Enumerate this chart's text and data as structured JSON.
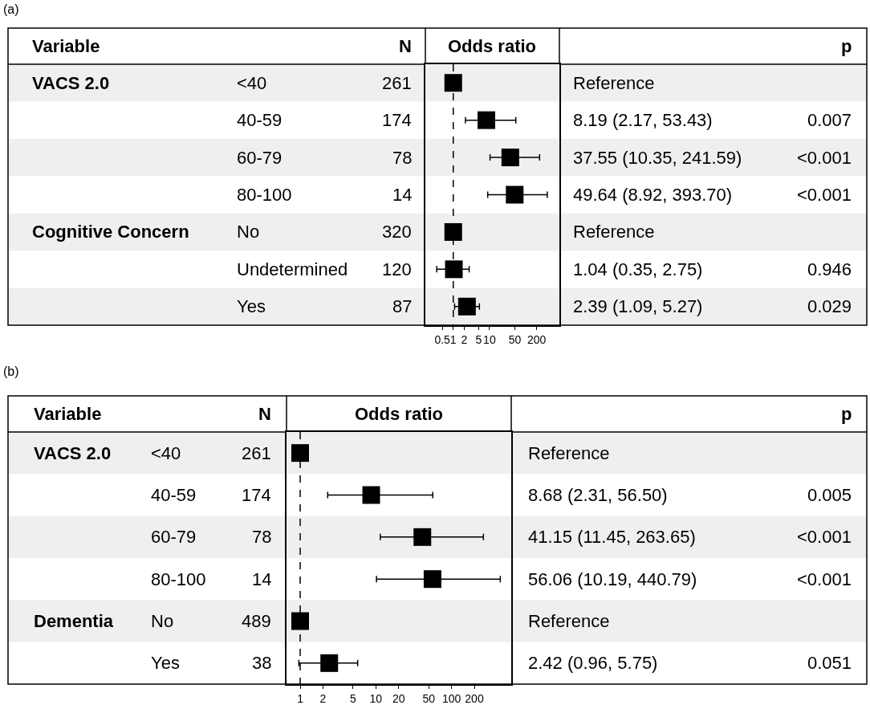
{
  "chart_data": [
    {
      "type": "scatter",
      "orientation": "horizontal",
      "log": "x",
      "marker": "square",
      "grid": false,
      "categories": [
        "<40",
        "40-59",
        "60-79",
        "80-100",
        "No",
        "Undetermined",
        "Yes"
      ],
      "color": "#000000",
      "values": [
        1,
        8.19,
        37.55,
        49.64,
        1,
        1.04,
        2.39
      ],
      "errors": [
        null,
        [
          2.17,
          53.43
        ],
        [
          10.35,
          241.59
        ],
        [
          8.92,
          393.7
        ],
        null,
        [
          0.35,
          2.75
        ],
        [
          1.09,
          5.27
        ]
      ],
      "xlim": [
        0.17,
        850
      ],
      "xticks": [
        0.5,
        1,
        2,
        5,
        10,
        50,
        200
      ],
      "ref_lines": [
        {
          "axis": "x",
          "value": 1,
          "line_style": "dashed",
          "color": "#000000"
        }
      ],
      "annotations": [
        "(a)",
        "Variable",
        "N",
        "Odds ratio",
        "p",
        "VACS 2.0",
        "Cognitive Concern",
        "261",
        "174",
        "78",
        "14",
        "320",
        "120",
        "87",
        "Reference",
        "8.19 (2.17, 53.43)",
        "37.55 (10.35, 241.59)",
        "49.64 (8.92, 393.70)",
        "Reference",
        "1.04 (0.35, 2.75)",
        "2.39 (1.09, 5.27)",
        "0.007",
        "<0.001",
        "<0.001",
        "0.946",
        "0.029"
      ]
    },
    {
      "type": "scatter",
      "orientation": "horizontal",
      "log": "x",
      "marker": "square",
      "grid": false,
      "categories": [
        "<40",
        "40-59",
        "60-79",
        "80-100",
        "No",
        "Yes"
      ],
      "color": "#000000",
      "values": [
        1,
        8.68,
        41.15,
        56.06,
        1,
        2.42
      ],
      "errors": [
        null,
        [
          2.31,
          56.5
        ],
        [
          11.45,
          263.65
        ],
        [
          10.19,
          440.79
        ],
        null,
        [
          0.96,
          5.75
        ]
      ],
      "xlim": [
        0.66,
        615
      ],
      "xticks": [
        1,
        2,
        5,
        10,
        20,
        50,
        100,
        200
      ],
      "ref_lines": [
        {
          "axis": "x",
          "value": 1,
          "line_style": "dashed",
          "color": "#000000"
        }
      ],
      "annotations": [
        "(b)",
        "Variable",
        "N",
        "Odds ratio",
        "p",
        "VACS 2.0",
        "Dementia",
        "261",
        "174",
        "78",
        "14",
        "489",
        "38",
        "Reference",
        "8.68 (2.31, 56.50)",
        "41.15 (11.45, 263.65)",
        "56.06 (10.19, 440.79)",
        "Reference",
        "2.42 (0.96, 5.75)",
        "0.005",
        "<0.001",
        "<0.001",
        "0.051"
      ]
    }
  ]
}
